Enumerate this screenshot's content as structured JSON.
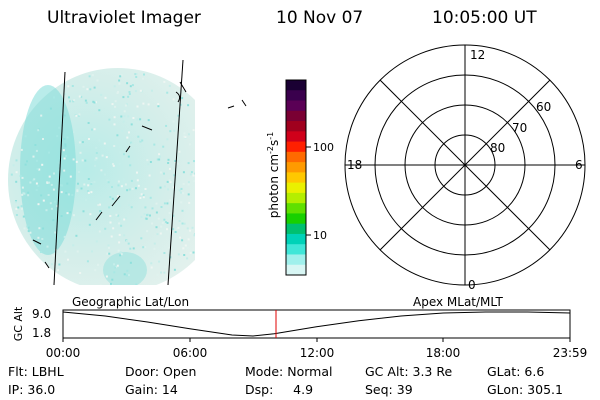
{
  "header": {
    "instrument": "Ultraviolet Imager",
    "date": "10 Nov 07",
    "time": "10:05:00 UT"
  },
  "colorbar": {
    "label": "photon cm",
    "label_exp1": "-2",
    "label_mid": "s",
    "label_exp2": "-1",
    "ticks": [
      "100",
      "10"
    ],
    "colors": [
      "#1a0033",
      "#3a004d",
      "#5a0055",
      "#7a0033",
      "#a0001e",
      "#d0001a",
      "#ff2000",
      "#ff6a00",
      "#ff9a00",
      "#ffc800",
      "#eaf000",
      "#b4ee00",
      "#60e000",
      "#18d000",
      "#00c070",
      "#00d2b8",
      "#40e6d8",
      "#a0f0ec",
      "#d8f6f4"
    ]
  },
  "polar": {
    "mlt_labels": [
      "12",
      "18",
      "6",
      "0"
    ],
    "lat_labels": [
      "60",
      "70",
      "80"
    ]
  },
  "timeline": {
    "left_label": "Geographic Lat/Lon",
    "right_label": "Apex MLat/MLT",
    "axis_label": "GC Alt",
    "y_ticks": [
      "9.0",
      "1.8"
    ],
    "x_ticks": [
      "00:00",
      "06:00",
      "12:00",
      "18:00",
      "23:59"
    ]
  },
  "status": {
    "flt": "Flt: LBHL",
    "door": "Door: Open",
    "mode": "Mode: Normal",
    "gcalt": "GC Alt: 3.3 Re",
    "glat": "GLat:   6.6",
    "ip": "IP: 36.0",
    "gain": "Gain: 14",
    "dsp": "Dsp:     4.9",
    "seq": "Seq: 39",
    "glon": "GLon: 305.1"
  },
  "chart_data": {
    "type": "line",
    "x_unit": "UT hours",
    "xlim": [
      0,
      24
    ],
    "ylim": [
      1.8,
      9.0
    ],
    "x": [
      0,
      2,
      4,
      6,
      8,
      9,
      10,
      12,
      14,
      16,
      18,
      20,
      22,
      24
    ],
    "values": [
      9.0,
      7.8,
      6.0,
      4.0,
      2.1,
      1.8,
      2.5,
      4.6,
      6.4,
      7.8,
      8.7,
      9.0,
      9.0,
      8.7
    ],
    "current_time": 10.083,
    "current_time_color": "#e00000"
  }
}
